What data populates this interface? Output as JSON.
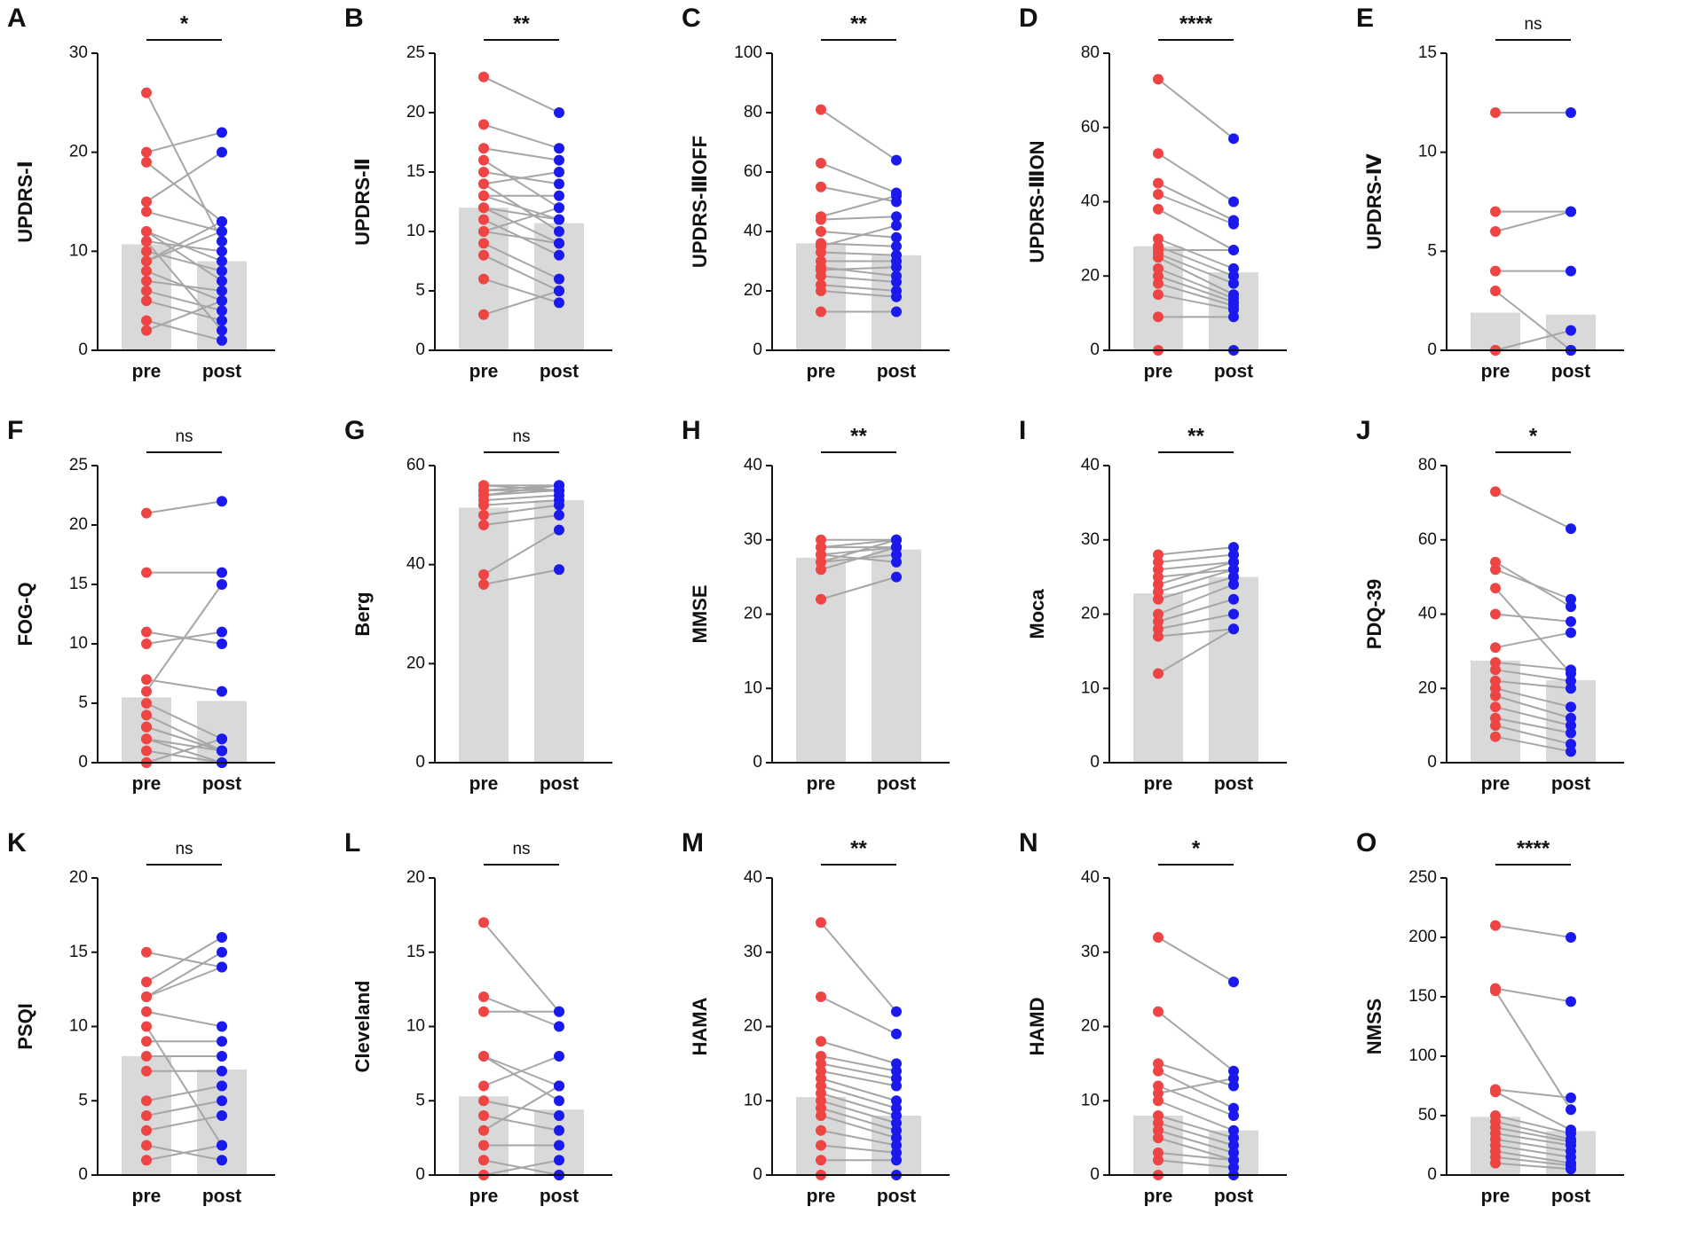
{
  "chart_data": [
    {
      "type": "bar",
      "label": "A",
      "ylabel": "UPDRS-Ⅰ",
      "significance": "*",
      "categories": [
        "pre",
        "post"
      ],
      "values": [
        10.7,
        9
      ],
      "ylim": [
        0,
        30
      ],
      "yticks": [
        0,
        10,
        20,
        30
      ],
      "bar_color": "#d9d9d9",
      "colors": [
        "#ee4444",
        "#1a1aee"
      ],
      "pairs": [
        [
          26,
          11
        ],
        [
          20,
          22
        ],
        [
          19,
          13
        ],
        [
          15,
          20
        ],
        [
          14,
          12
        ],
        [
          12,
          9
        ],
        [
          12,
          7
        ],
        [
          11,
          10
        ],
        [
          10,
          8
        ],
        [
          9,
          12
        ],
        [
          8,
          5
        ],
        [
          7,
          6
        ],
        [
          6,
          4
        ],
        [
          5,
          3
        ],
        [
          3,
          1
        ],
        [
          2,
          5
        ],
        [
          11,
          2
        ],
        [
          9,
          13
        ]
      ]
    },
    {
      "type": "bar",
      "label": "B",
      "ylabel": "UPDRS-Ⅱ",
      "significance": "**",
      "categories": [
        "pre",
        "post"
      ],
      "values": [
        12,
        10.7
      ],
      "ylim": [
        0,
        25
      ],
      "yticks": [
        0,
        5,
        10,
        15,
        20,
        25
      ],
      "bar_color": "#d9d9d9",
      "colors": [
        "#ee4444",
        "#1a1aee"
      ],
      "pairs": [
        [
          23,
          20
        ],
        [
          19,
          17
        ],
        [
          17,
          16
        ],
        [
          16,
          12
        ],
        [
          15,
          14
        ],
        [
          14,
          10
        ],
        [
          13,
          13
        ],
        [
          12,
          11
        ],
        [
          12,
          9
        ],
        [
          11,
          8
        ],
        [
          10,
          12
        ],
        [
          9,
          6
        ],
        [
          8,
          5
        ],
        [
          6,
          4
        ],
        [
          3,
          5
        ],
        [
          14,
          15
        ],
        [
          10,
          9
        ],
        [
          13,
          11
        ]
      ]
    },
    {
      "type": "bar",
      "label": "C",
      "ylabel": "UPDRS-ⅢOFF",
      "significance": "**",
      "categories": [
        "pre",
        "post"
      ],
      "values": [
        36,
        32
      ],
      "ylim": [
        0,
        100
      ],
      "yticks": [
        0,
        20,
        40,
        60,
        80,
        100
      ],
      "bar_color": "#d9d9d9",
      "colors": [
        "#ee4444",
        "#1a1aee"
      ],
      "pairs": [
        [
          81,
          64
        ],
        [
          63,
          53
        ],
        [
          55,
          50
        ],
        [
          45,
          52
        ],
        [
          44,
          45
        ],
        [
          40,
          38
        ],
        [
          36,
          35
        ],
        [
          33,
          32
        ],
        [
          30,
          30
        ],
        [
          28,
          25
        ],
        [
          25,
          23
        ],
        [
          22,
          20
        ],
        [
          20,
          18
        ],
        [
          13,
          13
        ],
        [
          35,
          42
        ],
        [
          27,
          28
        ]
      ]
    },
    {
      "type": "bar",
      "label": "D",
      "ylabel": "UPDRS-ⅢON",
      "significance": "****",
      "categories": [
        "pre",
        "post"
      ],
      "values": [
        28,
        21
      ],
      "ylim": [
        0,
        80
      ],
      "yticks": [
        0,
        20,
        40,
        60,
        80
      ],
      "bar_color": "#d9d9d9",
      "colors": [
        "#ee4444",
        "#1a1aee"
      ],
      "pairs": [
        [
          73,
          57
        ],
        [
          53,
          40
        ],
        [
          45,
          35
        ],
        [
          42,
          34
        ],
        [
          38,
          27
        ],
        [
          30,
          22
        ],
        [
          28,
          20
        ],
        [
          26,
          18
        ],
        [
          25,
          15
        ],
        [
          22,
          14
        ],
        [
          18,
          12
        ],
        [
          15,
          11
        ],
        [
          9,
          9
        ],
        [
          0,
          0
        ],
        [
          27,
          27
        ],
        [
          20,
          13
        ]
      ]
    },
    {
      "type": "bar",
      "label": "E",
      "ylabel": "UPDRS-Ⅳ",
      "significance": "ns",
      "categories": [
        "pre",
        "post"
      ],
      "values": [
        1.9,
        1.8
      ],
      "ylim": [
        0,
        15
      ],
      "yticks": [
        0,
        5,
        10,
        15
      ],
      "bar_color": "#d9d9d9",
      "colors": [
        "#ee4444",
        "#1a1aee"
      ],
      "pairs": [
        [
          12,
          12
        ],
        [
          7,
          7
        ],
        [
          6,
          7
        ],
        [
          4,
          4
        ],
        [
          3,
          0
        ],
        [
          0,
          1
        ],
        [
          0,
          0
        ],
        [
          0,
          0
        ]
      ]
    },
    {
      "type": "bar",
      "label": "F",
      "ylabel": "FOG-Q",
      "significance": "ns",
      "categories": [
        "pre",
        "post"
      ],
      "values": [
        5.5,
        5.2
      ],
      "ylim": [
        0,
        25
      ],
      "yticks": [
        0,
        5,
        10,
        15,
        20,
        25
      ],
      "bar_color": "#d9d9d9",
      "colors": [
        "#ee4444",
        "#1a1aee"
      ],
      "pairs": [
        [
          21,
          22
        ],
        [
          16,
          16
        ],
        [
          11,
          10
        ],
        [
          10,
          11
        ],
        [
          7,
          6
        ],
        [
          6,
          15
        ],
        [
          5,
          2
        ],
        [
          4,
          1
        ],
        [
          3,
          1
        ],
        [
          2,
          0
        ],
        [
          1,
          0
        ],
        [
          0,
          0
        ],
        [
          0,
          2
        ],
        [
          3,
          1
        ],
        [
          2,
          1
        ]
      ]
    },
    {
      "type": "bar",
      "label": "G",
      "ylabel": "Berg",
      "significance": "ns",
      "categories": [
        "pre",
        "post"
      ],
      "values": [
        51.5,
        53
      ],
      "ylim": [
        0,
        60
      ],
      "yticks": [
        0,
        20,
        40,
        60
      ],
      "bar_color": "#d9d9d9",
      "colors": [
        "#ee4444",
        "#1a1aee"
      ],
      "pairs": [
        [
          56,
          56
        ],
        [
          55,
          56
        ],
        [
          54,
          55
        ],
        [
          53,
          54
        ],
        [
          52,
          53
        ],
        [
          50,
          52
        ],
        [
          48,
          50
        ],
        [
          38,
          47
        ],
        [
          36,
          39
        ],
        [
          56,
          55
        ],
        [
          55,
          55
        ],
        [
          54,
          56
        ]
      ]
    },
    {
      "type": "bar",
      "label": "H",
      "ylabel": "MMSE",
      "significance": "**",
      "categories": [
        "pre",
        "post"
      ],
      "values": [
        27.6,
        28.7
      ],
      "ylim": [
        0,
        40
      ],
      "yticks": [
        0,
        10,
        20,
        30,
        40
      ],
      "bar_color": "#d9d9d9",
      "colors": [
        "#ee4444",
        "#1a1aee"
      ],
      "pairs": [
        [
          30,
          30
        ],
        [
          29,
          30
        ],
        [
          28,
          29
        ],
        [
          27,
          28
        ],
        [
          26,
          29
        ],
        [
          22,
          25
        ],
        [
          29,
          29
        ],
        [
          28,
          27
        ],
        [
          27,
          30
        ]
      ]
    },
    {
      "type": "bar",
      "label": "I",
      "ylabel": "Moca",
      "significance": "**",
      "categories": [
        "pre",
        "post"
      ],
      "values": [
        22.8,
        25
      ],
      "ylim": [
        0,
        40
      ],
      "yticks": [
        0,
        10,
        20,
        30,
        40
      ],
      "bar_color": "#d9d9d9",
      "colors": [
        "#ee4444",
        "#1a1aee"
      ],
      "pairs": [
        [
          28,
          29
        ],
        [
          27,
          28
        ],
        [
          26,
          27
        ],
        [
          25,
          26
        ],
        [
          24,
          27
        ],
        [
          22,
          25
        ],
        [
          20,
          24
        ],
        [
          19,
          22
        ],
        [
          18,
          20
        ],
        [
          17,
          18
        ],
        [
          12,
          18
        ],
        [
          23,
          26
        ]
      ]
    },
    {
      "type": "bar",
      "label": "J",
      "ylabel": "PDQ-39",
      "significance": "*",
      "categories": [
        "pre",
        "post"
      ],
      "values": [
        27.5,
        22.2
      ],
      "ylim": [
        0,
        80
      ],
      "yticks": [
        0,
        20,
        40,
        60,
        80
      ],
      "bar_color": "#d9d9d9",
      "colors": [
        "#ee4444",
        "#1a1aee"
      ],
      "pairs": [
        [
          73,
          63
        ],
        [
          54,
          42
        ],
        [
          52,
          44
        ],
        [
          47,
          24
        ],
        [
          40,
          38
        ],
        [
          31,
          35
        ],
        [
          25,
          22
        ],
        [
          22,
          20
        ],
        [
          20,
          15
        ],
        [
          15,
          10
        ],
        [
          12,
          8
        ],
        [
          10,
          5
        ],
        [
          7,
          3
        ],
        [
          27,
          25
        ],
        [
          18,
          12
        ]
      ]
    },
    {
      "type": "bar",
      "label": "K",
      "ylabel": "PSQI",
      "significance": "ns",
      "categories": [
        "pre",
        "post"
      ],
      "values": [
        8,
        7.1
      ],
      "ylim": [
        0,
        20
      ],
      "yticks": [
        0,
        5,
        10,
        15,
        20
      ],
      "bar_color": "#d9d9d9",
      "colors": [
        "#ee4444",
        "#1a1aee"
      ],
      "pairs": [
        [
          15,
          14
        ],
        [
          13,
          16
        ],
        [
          12,
          15
        ],
        [
          11,
          10
        ],
        [
          10,
          2
        ],
        [
          9,
          9
        ],
        [
          8,
          8
        ],
        [
          7,
          7
        ],
        [
          5,
          6
        ],
        [
          4,
          5
        ],
        [
          3,
          4
        ],
        [
          2,
          1
        ],
        [
          1,
          2
        ],
        [
          12,
          14
        ]
      ]
    },
    {
      "type": "bar",
      "label": "L",
      "ylabel": "Cleveland",
      "significance": "ns",
      "categories": [
        "pre",
        "post"
      ],
      "values": [
        5.3,
        4.4
      ],
      "ylim": [
        0,
        20
      ],
      "yticks": [
        0,
        5,
        10,
        15,
        20
      ],
      "bar_color": "#d9d9d9",
      "colors": [
        "#ee4444",
        "#1a1aee"
      ],
      "pairs": [
        [
          17,
          11
        ],
        [
          12,
          10
        ],
        [
          11,
          11
        ],
        [
          8,
          5
        ],
        [
          6,
          8
        ],
        [
          5,
          4
        ],
        [
          4,
          3
        ],
        [
          3,
          6
        ],
        [
          2,
          2
        ],
        [
          1,
          0
        ],
        [
          0,
          1
        ],
        [
          0,
          0
        ],
        [
          8,
          6
        ]
      ]
    },
    {
      "type": "bar",
      "label": "M",
      "ylabel": "HAMA",
      "significance": "**",
      "categories": [
        "pre",
        "post"
      ],
      "values": [
        10.5,
        8
      ],
      "ylim": [
        0,
        40
      ],
      "yticks": [
        0,
        10,
        20,
        30,
        40
      ],
      "bar_color": "#d9d9d9",
      "colors": [
        "#ee4444",
        "#1a1aee"
      ],
      "pairs": [
        [
          34,
          22
        ],
        [
          24,
          19
        ],
        [
          18,
          15
        ],
        [
          16,
          14
        ],
        [
          15,
          13
        ],
        [
          13,
          10
        ],
        [
          12,
          9
        ],
        [
          11,
          8
        ],
        [
          10,
          7
        ],
        [
          9,
          6
        ],
        [
          8,
          5
        ],
        [
          6,
          4
        ],
        [
          4,
          3
        ],
        [
          2,
          2
        ],
        [
          0,
          0
        ],
        [
          14,
          12
        ]
      ]
    },
    {
      "type": "bar",
      "label": "N",
      "ylabel": "HAMD",
      "significance": "*",
      "categories": [
        "pre",
        "post"
      ],
      "values": [
        8,
        6
      ],
      "ylim": [
        0,
        40
      ],
      "yticks": [
        0,
        10,
        20,
        30,
        40
      ],
      "bar_color": "#d9d9d9",
      "colors": [
        "#ee4444",
        "#1a1aee"
      ],
      "pairs": [
        [
          32,
          26
        ],
        [
          22,
          14
        ],
        [
          15,
          12
        ],
        [
          14,
          9
        ],
        [
          12,
          8
        ],
        [
          10,
          6
        ],
        [
          8,
          5
        ],
        [
          7,
          4
        ],
        [
          6,
          3
        ],
        [
          5,
          2
        ],
        [
          3,
          2
        ],
        [
          2,
          1
        ],
        [
          0,
          0
        ],
        [
          11,
          13
        ]
      ]
    },
    {
      "type": "bar",
      "label": "O",
      "ylabel": "NMSS",
      "significance": "****",
      "categories": [
        "pre",
        "post"
      ],
      "values": [
        49,
        37
      ],
      "ylim": [
        0,
        250
      ],
      "yticks": [
        0,
        50,
        100,
        150,
        200,
        250
      ],
      "bar_color": "#d9d9d9",
      "colors": [
        "#ee4444",
        "#1a1aee"
      ],
      "pairs": [
        [
          210,
          200
        ],
        [
          157,
          146
        ],
        [
          155,
          55
        ],
        [
          72,
          65
        ],
        [
          70,
          38
        ],
        [
          50,
          35
        ],
        [
          45,
          30
        ],
        [
          40,
          28
        ],
        [
          35,
          25
        ],
        [
          30,
          20
        ],
        [
          25,
          15
        ],
        [
          20,
          10
        ],
        [
          15,
          8
        ],
        [
          10,
          5
        ]
      ]
    }
  ]
}
